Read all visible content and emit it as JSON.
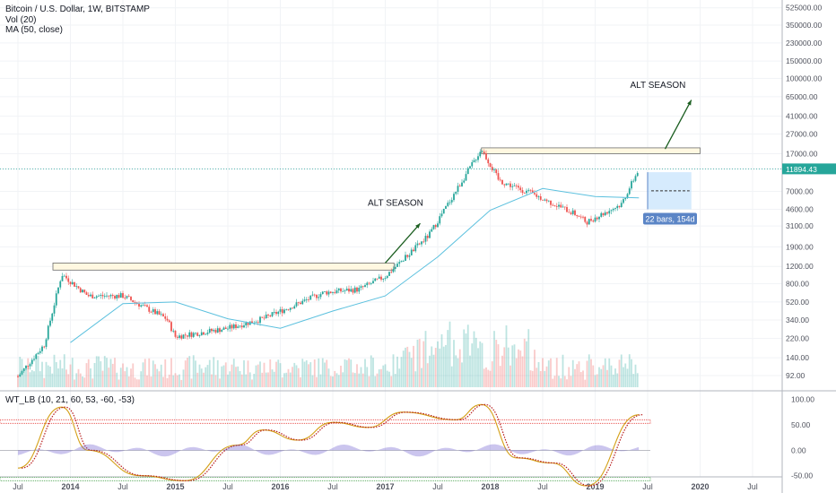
{
  "header": {
    "symbol": "Bitcoin / U.S. Dollar, 1W, BITSTAMP",
    "indicator_vol": "Vol (20)",
    "indicator_ma": "MA (50, close)",
    "oscillator": "WT_LB (10, 21, 60, 53, -60, -53)"
  },
  "price_tag": "11894.43",
  "annotations": {
    "alt_season_1": "ALT SEASON",
    "alt_season_2": "ALT SEASON",
    "projection_label": "22 bars, 154d"
  },
  "colors": {
    "up": "#26a69a",
    "down": "#ef5350",
    "ma": "#5bc0de",
    "arrow": "#1b5e20",
    "resistance_fill": "#fff8e1",
    "projection_fill": "#bbdefb",
    "badge": "#5b85c6",
    "osc_fill": "#6a5acd",
    "overbought": "#e53935",
    "oversold": "#43a047",
    "wt_dotted": "#b71c1c"
  },
  "chart_data": {
    "type": "candlestick",
    "scale": "log",
    "x_ticks": [
      "Jul",
      "2014",
      "Jul",
      "2015",
      "Jul",
      "2016",
      "Jul",
      "2017",
      "Jul",
      "2018",
      "Jul",
      "2019",
      "Jul",
      "2020",
      "Jul"
    ],
    "y_ticks": [
      "525000.00",
      "350000.00",
      "230000.00",
      "150000.00",
      "100000.00",
      "65000.00",
      "41000.00",
      "27000.00",
      "17000.00",
      "11894.43",
      "7000.00",
      "4600.00",
      "3100.00",
      "1900.00",
      "1200.00",
      "800.00",
      "520.00",
      "340.00",
      "220.00",
      "140.00",
      "92.00"
    ],
    "price_series": [
      {
        "date": "2013-07",
        "close": 90
      },
      {
        "date": "2013-10",
        "close": 190
      },
      {
        "date": "2013-12",
        "close": 1000
      },
      {
        "date": "2014-03",
        "close": 600
      },
      {
        "date": "2014-07",
        "close": 600
      },
      {
        "date": "2014-12",
        "close": 350
      },
      {
        "date": "2015-01",
        "close": 230
      },
      {
        "date": "2015-07",
        "close": 280
      },
      {
        "date": "2015-11",
        "close": 350
      },
      {
        "date": "2016-06",
        "close": 650
      },
      {
        "date": "2016-10",
        "close": 700
      },
      {
        "date": "2017-01",
        "close": 950
      },
      {
        "date": "2017-06",
        "close": 2500
      },
      {
        "date": "2017-12",
        "close": 19000
      },
      {
        "date": "2018-02",
        "close": 9000
      },
      {
        "date": "2018-06",
        "close": 6500
      },
      {
        "date": "2018-11",
        "close": 4000
      },
      {
        "date": "2018-12",
        "close": 3400
      },
      {
        "date": "2019-04",
        "close": 5200
      },
      {
        "date": "2019-06",
        "close": 11894.43
      }
    ],
    "ma_series": [
      {
        "date": "2014-01",
        "value": 200
      },
      {
        "date": "2014-07",
        "value": 500
      },
      {
        "date": "2015-01",
        "value": 520
      },
      {
        "date": "2015-07",
        "value": 350
      },
      {
        "date": "2016-01",
        "value": 280
      },
      {
        "date": "2016-07",
        "value": 420
      },
      {
        "date": "2017-01",
        "value": 600
      },
      {
        "date": "2017-07",
        "value": 1500
      },
      {
        "date": "2018-01",
        "value": 4500
      },
      {
        "date": "2018-07",
        "value": 7500
      },
      {
        "date": "2019-01",
        "value": 6200
      },
      {
        "date": "2019-06",
        "value": 6000
      }
    ],
    "resistance_zones": [
      {
        "from": "2013-11",
        "to": "2017-02",
        "low": 1100,
        "high": 1300
      },
      {
        "from": "2017-12",
        "to": "2020-01",
        "low": 17000,
        "high": 19500
      }
    ],
    "oscillator": {
      "y_ticks": [
        "100.00",
        "50.00",
        "0.00",
        "-50.00"
      ],
      "levels": {
        "overbought": [
          53,
          60
        ],
        "oversold": [
          -53,
          -60
        ]
      },
      "wt1": [
        {
          "date": "2013-07",
          "value": -35
        },
        {
          "date": "2013-12",
          "value": 85
        },
        {
          "date": "2014-03",
          "value": 0
        },
        {
          "date": "2014-09",
          "value": -50
        },
        {
          "date": "2015-02",
          "value": -60
        },
        {
          "date": "2015-08",
          "value": 10
        },
        {
          "date": "2015-11",
          "value": 40
        },
        {
          "date": "2016-03",
          "value": 20
        },
        {
          "date": "2016-07",
          "value": 55
        },
        {
          "date": "2016-11",
          "value": 45
        },
        {
          "date": "2017-03",
          "value": 75
        },
        {
          "date": "2017-09",
          "value": 60
        },
        {
          "date": "2017-12",
          "value": 90
        },
        {
          "date": "2018-04",
          "value": -15
        },
        {
          "date": "2018-08",
          "value": -25
        },
        {
          "date": "2018-12",
          "value": -70
        },
        {
          "date": "2019-06",
          "value": 70
        }
      ]
    }
  }
}
